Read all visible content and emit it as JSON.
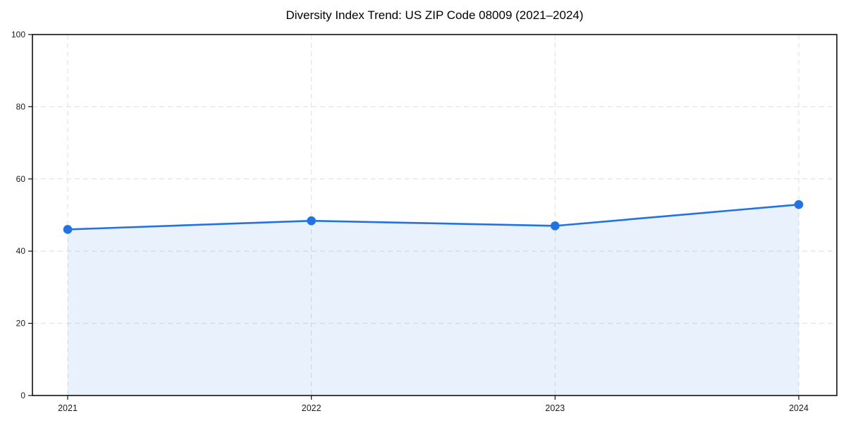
{
  "page": {
    "background": "#ffffff"
  },
  "chart_data": {
    "type": "area",
    "title": "Diversity Index Trend: US ZIP Code 08009 (2021–2024)",
    "categories": [
      "2021",
      "2022",
      "2023",
      "2024"
    ],
    "values": [
      46.0,
      48.4,
      47.0,
      52.9
    ],
    "xlabel": "",
    "ylabel": "",
    "ylim": [
      0,
      100
    ],
    "yticks": [
      0,
      20,
      40,
      60,
      80,
      100
    ],
    "grid": true,
    "grid_style": "dashed",
    "legend": false,
    "marker": "circle",
    "colors": {
      "line": "#2272e3",
      "fill": "rgba(34,114,227,0.10)",
      "grid": "#dedede",
      "spine": "#111111",
      "text": "#1a1a1a"
    }
  }
}
